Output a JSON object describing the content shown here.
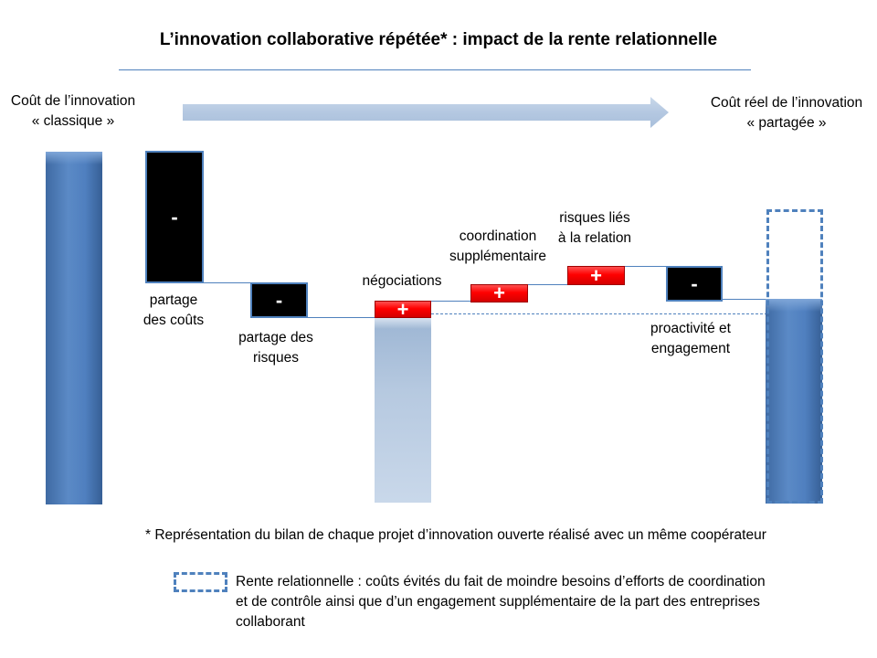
{
  "title": "L’innovation collaborative répétée* : impact de la rente relationnelle",
  "left_label": {
    "line1": "Coût de l’innovation",
    "line2": "« classique »"
  },
  "right_label": {
    "line1": "Coût réel de l’innovation",
    "line2": "« partagée »"
  },
  "steps": [
    {
      "sign": "-",
      "label_lines": [
        "partage",
        "des coûts"
      ]
    },
    {
      "sign": "-",
      "label_lines": [
        "partage des",
        "risques"
      ]
    },
    {
      "sign": "+",
      "label_lines": [
        "négociations"
      ]
    },
    {
      "sign": "+",
      "label_lines": [
        "coordination",
        "supplémentaire"
      ]
    },
    {
      "sign": "+",
      "label_lines": [
        "risques liés",
        "à la relation"
      ]
    },
    {
      "sign": "-",
      "label_lines": [
        "proactivité et",
        "engagement"
      ]
    }
  ],
  "colors": {
    "bar": "#4f81bd",
    "decrease": "#000000",
    "increase": "#ff0000",
    "ghost_bar": "#b8cce4",
    "arrow": "#b8cce4"
  },
  "footnote": "* Représentation du bilan de chaque projet d’innovation ouverte réalisé avec un même coopérateur",
  "legend": {
    "line1": "Rente relationnelle : coûts évités du fait de moindre besoins d’efforts de coordination",
    "line2": "et de contrôle ainsi que d’un engagement supplémentaire de la part des entreprises",
    "line3": "collaborant"
  }
}
